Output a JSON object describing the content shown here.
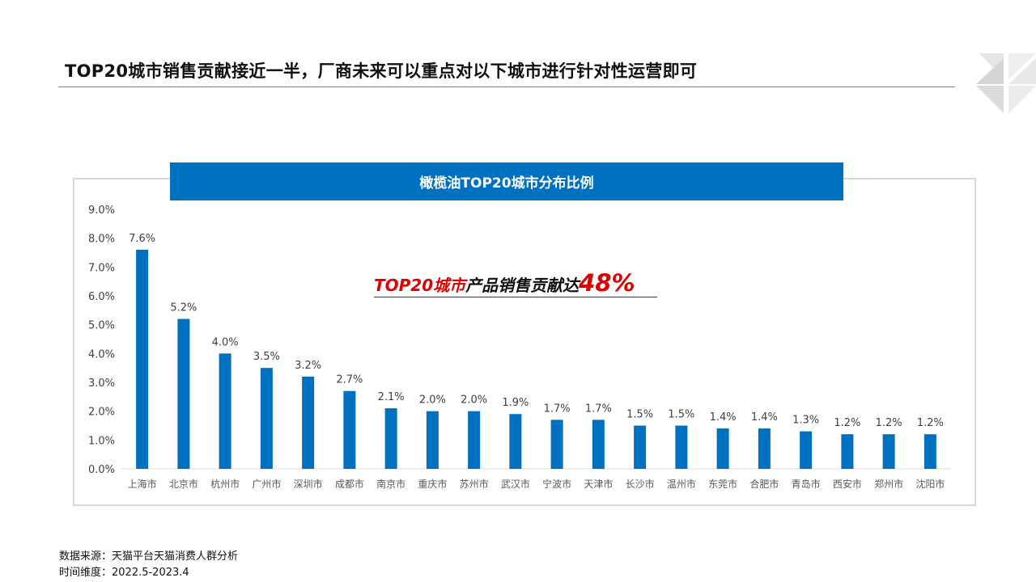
{
  "slide": {
    "title": "TOP20城市销售贡献接近一半，厂商未来可以重点对以下城市进行针对性运营即可"
  },
  "callout": {
    "part1": "TOP20城市",
    "part2": "产品销售贡献达",
    "part3": "48%"
  },
  "footer": {
    "source_line": "数据来源：天猫平台天猫消费人群分析",
    "period_line": "时间维度：2022.5-2023.4"
  },
  "colors": {
    "bar": "#0070c0",
    "banner": "#0070c0",
    "callout_red": "#e00000"
  },
  "chart_data": {
    "type": "bar",
    "title": "橄榄油TOP20城市分布比例",
    "categories": [
      "上海市",
      "北京市",
      "杭州市",
      "广州市",
      "深圳市",
      "成都市",
      "南京市",
      "重庆市",
      "苏州市",
      "武汉市",
      "宁波市",
      "天津市",
      "长沙市",
      "温州市",
      "东莞市",
      "合肥市",
      "青岛市",
      "西安市",
      "郑州市",
      "沈阳市"
    ],
    "values": [
      7.6,
      5.2,
      4.0,
      3.5,
      3.2,
      2.7,
      2.1,
      2.0,
      2.0,
      1.9,
      1.7,
      1.7,
      1.5,
      1.5,
      1.4,
      1.4,
      1.3,
      1.2,
      1.2,
      1.2
    ],
    "data_labels": [
      "7.6%",
      "5.2%",
      "4.0%",
      "3.5%",
      "3.2%",
      "2.7%",
      "2.1%",
      "2.0%",
      "2.0%",
      "1.9%",
      "1.7%",
      "1.7%",
      "1.5%",
      "1.5%",
      "1.4%",
      "1.4%",
      "1.3%",
      "1.2%",
      "1.2%",
      "1.2%"
    ],
    "y_ticks": [
      "0.0%",
      "1.0%",
      "2.0%",
      "3.0%",
      "4.0%",
      "5.0%",
      "6.0%",
      "7.0%",
      "8.0%",
      "9.0%"
    ],
    "ylim": [
      0,
      9
    ],
    "y_unit": "%",
    "grid": false,
    "legend": "none"
  }
}
